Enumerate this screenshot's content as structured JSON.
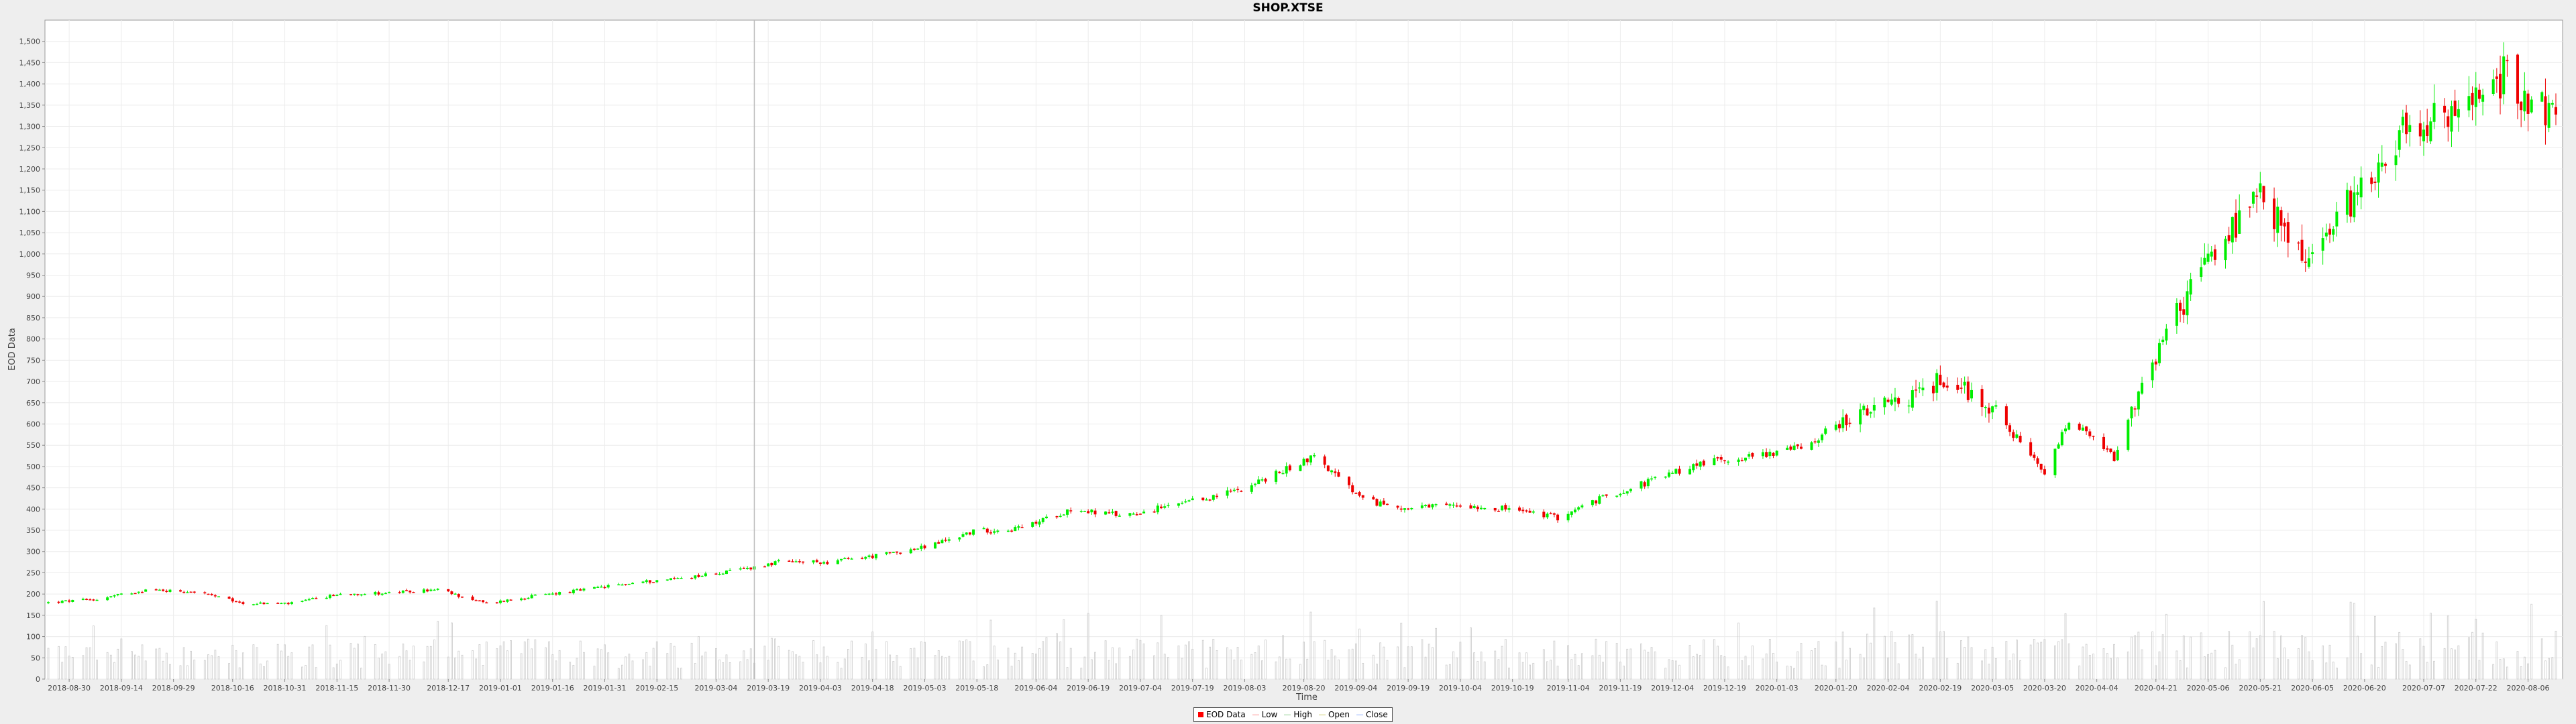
{
  "chart_data": {
    "type": "candlestick",
    "title": "SHOP.XTSE",
    "xlabel": "Time",
    "ylabel": "EOD Data",
    "ylim": [
      0,
      1550
    ],
    "yticks": [
      0,
      50,
      100,
      150,
      200,
      250,
      300,
      350,
      400,
      450,
      500,
      550,
      600,
      650,
      700,
      750,
      800,
      850,
      900,
      950,
      1000,
      1050,
      1100,
      1150,
      1200,
      1250,
      1300,
      1350,
      1400,
      1450,
      1500
    ],
    "ytick_labels": [
      "0",
      "50",
      "100",
      "150",
      "200",
      "250",
      "300",
      "350",
      "400",
      "450",
      "500",
      "550",
      "600",
      "650",
      "700",
      "750",
      "800",
      "850",
      "900",
      "950",
      "1,000",
      "1,050",
      "1,100",
      "1,150",
      "1,200",
      "1,250",
      "1,300",
      "1,350",
      "1,400",
      "1,450",
      "1,500"
    ],
    "x_tick_labels": [
      "2018-08-30",
      "2018-09-14",
      "2018-09-29",
      "2018-10-16",
      "2018-10-31",
      "2018-11-15",
      "2018-11-30",
      "2018-12-17",
      "2019-01-01",
      "2019-01-16",
      "2019-01-31",
      "2019-02-15",
      "2019-03-04",
      "2019-03-19",
      "2019-04-03",
      "2019-04-18",
      "2019-05-03",
      "2019-05-18",
      "2019-06-04",
      "2019-06-19",
      "2019-07-04",
      "2019-07-19",
      "2019-08-03",
      "2019-08-20",
      "2019-09-04",
      "2019-09-19",
      "2019-10-04",
      "2019-10-19",
      "2019-11-04",
      "2019-11-19",
      "2019-12-04",
      "2019-12-19",
      "2020-01-03",
      "2020-01-20",
      "2020-02-04",
      "2020-02-19",
      "2020-03-05",
      "2020-03-20",
      "2020-04-04",
      "2020-04-21",
      "2020-05-06",
      "2020-05-21",
      "2020-06-05",
      "2020-06-20",
      "2020-07-07",
      "2020-07-22",
      "2020-08-06"
    ],
    "x_range": [
      "2018-08-24",
      "2020-08-14"
    ],
    "crosshair_date": "2019-03-15",
    "series_close_points": [
      [
        "2018-08-24",
        180
      ],
      [
        "2018-09-07",
        188
      ],
      [
        "2018-09-21",
        210
      ],
      [
        "2018-10-05",
        206
      ],
      [
        "2018-10-19",
        178
      ],
      [
        "2018-11-02",
        178
      ],
      [
        "2018-11-16",
        200
      ],
      [
        "2018-12-01",
        203
      ],
      [
        "2018-12-14",
        210
      ],
      [
        "2018-12-28",
        178
      ],
      [
        "2019-01-11",
        196
      ],
      [
        "2019-01-25",
        210
      ],
      [
        "2019-02-08",
        226
      ],
      [
        "2019-02-22",
        238
      ],
      [
        "2019-03-08",
        253
      ],
      [
        "2019-03-22",
        275
      ],
      [
        "2019-04-05",
        275
      ],
      [
        "2019-04-19",
        290
      ],
      [
        "2019-05-03",
        310
      ],
      [
        "2019-05-17",
        348
      ],
      [
        "2019-05-31",
        355
      ],
      [
        "2019-06-14",
        400
      ],
      [
        "2019-06-28",
        385
      ],
      [
        "2019-07-12",
        405
      ],
      [
        "2019-07-26",
        430
      ],
      [
        "2019-08-09",
        470
      ],
      [
        "2019-08-23",
        525
      ],
      [
        "2019-09-06",
        420
      ],
      [
        "2019-09-20",
        400
      ],
      [
        "2019-10-04",
        410
      ],
      [
        "2019-10-18",
        400
      ],
      [
        "2019-11-01",
        380
      ],
      [
        "2019-11-15",
        430
      ],
      [
        "2019-11-29",
        470
      ],
      [
        "2019-12-13",
        510
      ],
      [
        "2019-12-27",
        525
      ],
      [
        "2020-01-10",
        545
      ],
      [
        "2020-01-24",
        615
      ],
      [
        "2020-02-07",
        650
      ],
      [
        "2020-02-21",
        710
      ],
      [
        "2020-03-06",
        630
      ],
      [
        "2020-03-20",
        480
      ],
      [
        "2020-03-27",
        610
      ],
      [
        "2020-04-09",
        520
      ],
      [
        "2020-04-23",
        800
      ],
      [
        "2020-05-07",
        1000
      ],
      [
        "2020-05-21",
        1130
      ],
      [
        "2020-06-04",
        980
      ],
      [
        "2020-06-18",
        1150
      ],
      [
        "2020-07-02",
        1300
      ],
      [
        "2020-07-16",
        1320
      ],
      [
        "2020-07-30",
        1420
      ],
      [
        "2020-08-14",
        1320
      ]
    ]
  },
  "legend": {
    "items": [
      {
        "label": "EOD Data",
        "color": "#ff0000",
        "kind": "box"
      },
      {
        "label": "Low",
        "color": "#ff8888",
        "kind": "line"
      },
      {
        "label": "High",
        "color": "#88cc88",
        "kind": "line"
      },
      {
        "label": "Open",
        "color": "#cccc66",
        "kind": "line"
      },
      {
        "label": "Close",
        "color": "#88aaff",
        "kind": "line"
      }
    ]
  },
  "colors": {
    "up": "#00ee00",
    "down": "#ee0000",
    "volume": "#cccccc",
    "grid": "#ececec",
    "crosshair": "#bbbbbb"
  }
}
